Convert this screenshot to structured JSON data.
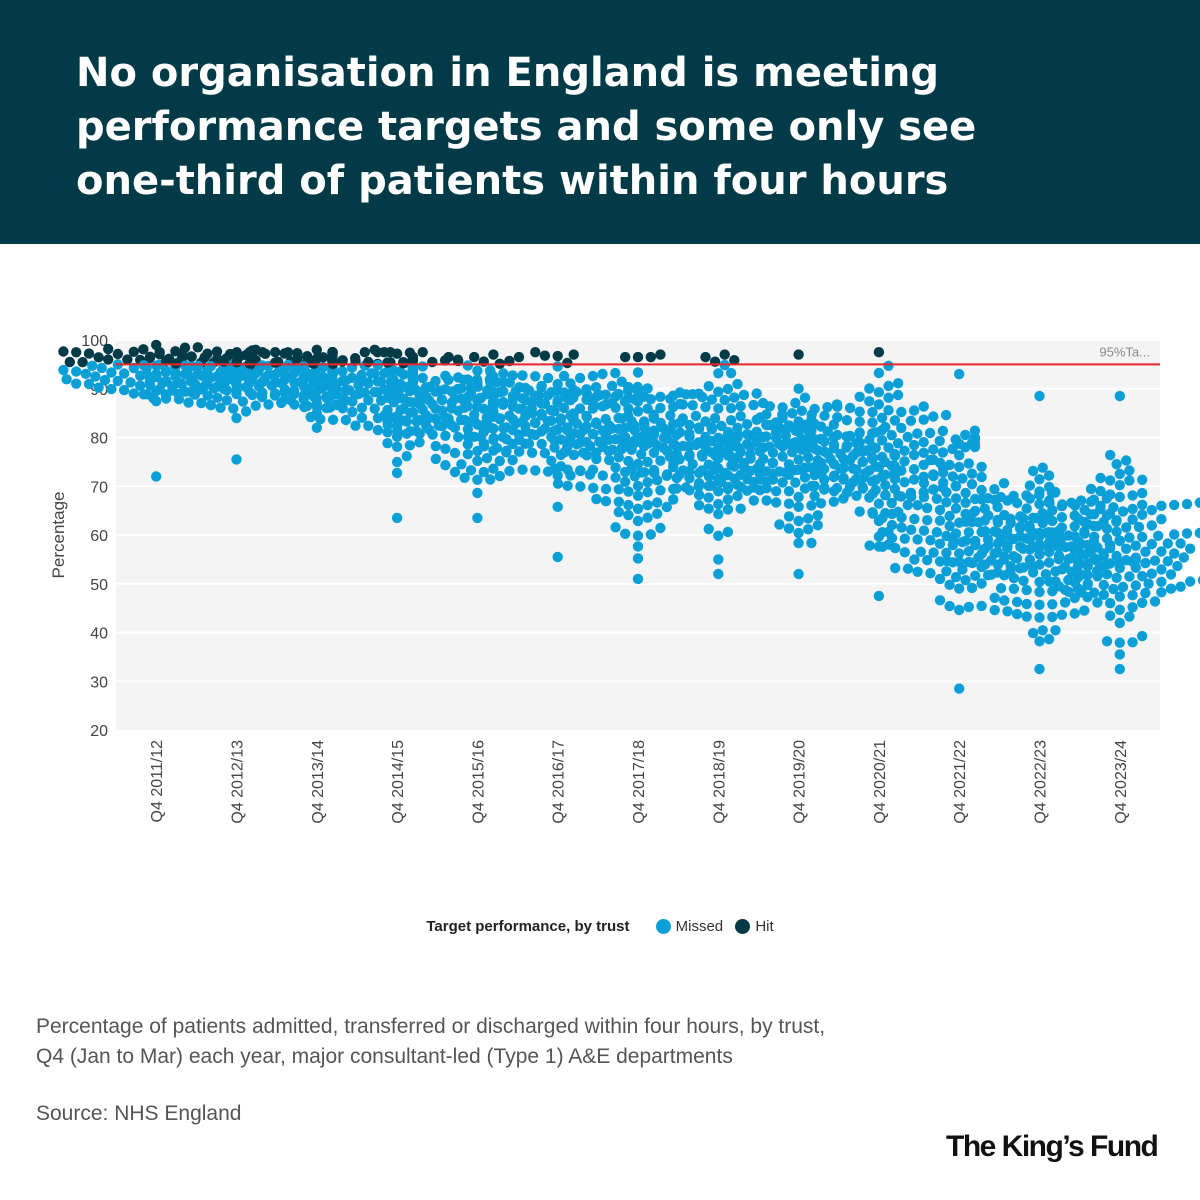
{
  "header": {
    "title_lines": [
      "No organisation in England is meeting",
      "performance targets and some only see",
      "one-third of patients within four hours"
    ]
  },
  "chart_data": {
    "type": "scatter",
    "subtype": "beeswarm",
    "ylabel": "Percentage",
    "ylim": [
      20,
      100
    ],
    "yticks": [
      20,
      30,
      40,
      50,
      60,
      70,
      80,
      90,
      100
    ],
    "grid": true,
    "categories": [
      "Q4 2011/12",
      "Q4 2012/13",
      "Q4 2013/14",
      "Q4 2014/15",
      "Q4 2015/16",
      "Q4 2016/17",
      "Q4 2017/18",
      "Q4 2018/19",
      "Q4 2019/20",
      "Q4 2020/21",
      "Q4 2021/22",
      "Q4 2022/23",
      "Q4 2023/24"
    ],
    "target_line": {
      "value": 95,
      "label": "95%Ta...",
      "color": "#e8262c"
    },
    "series": [
      {
        "name": "Missed",
        "color": "#0b9fd8"
      },
      {
        "name": "Hit",
        "color": "#023a47"
      }
    ],
    "distribution": [
      {
        "category": "Q4 2011/12",
        "n": 140,
        "median": 94,
        "spread": 2.5,
        "min": 72,
        "max": 99
      },
      {
        "category": "Q4 2012/13",
        "n": 145,
        "median": 92,
        "spread": 3.5,
        "min": 75.5,
        "max": 98
      },
      {
        "category": "Q4 2013/14",
        "n": 145,
        "median": 93,
        "spread": 3,
        "min": 82,
        "max": 98
      },
      {
        "category": "Q4 2014/15",
        "n": 145,
        "median": 88,
        "spread": 4.5,
        "min": 63.5,
        "max": 98
      },
      {
        "category": "Q4 2015/16",
        "n": 145,
        "median": 84,
        "spread": 6,
        "min": 63.5,
        "max": 97
      },
      {
        "category": "Q4 2016/17",
        "n": 145,
        "median": 83,
        "spread": 6.5,
        "min": 55.5,
        "max": 97.5
      },
      {
        "category": "Q4 2017/18",
        "n": 145,
        "median": 78,
        "spread": 8,
        "min": 51,
        "max": 97
      },
      {
        "category": "Q4 2018/19",
        "n": 145,
        "median": 78,
        "spread": 7.5,
        "min": 52,
        "max": 97
      },
      {
        "category": "Q4 2019/20",
        "n": 145,
        "median": 74,
        "spread": 7.5,
        "min": 52,
        "max": 97
      },
      {
        "category": "Q4 2020/21",
        "n": 145,
        "median": 78,
        "spread": 7,
        "min": 47.5,
        "max": 97.5
      },
      {
        "category": "Q4 2021/22",
        "n": 145,
        "median": 60,
        "spread": 8,
        "min": 28.5,
        "max": 93
      },
      {
        "category": "Q4 2022/23",
        "n": 145,
        "median": 56,
        "spread": 8,
        "min": 32.5,
        "max": 88.5
      },
      {
        "category": "Q4 2023/24",
        "n": 145,
        "median": 57,
        "spread": 8.5,
        "min": 32.5,
        "max": 88.5
      }
    ]
  },
  "legend": {
    "title": "Target performance, by trust",
    "items": [
      {
        "label": "Missed",
        "color": "#0b9fd8"
      },
      {
        "label": "Hit",
        "color": "#023a47"
      }
    ]
  },
  "caption_lines": [
    "Percentage of patients admitted, transferred or discharged within four hours, by trust,",
    "Q4 (Jan to Mar) each year, major consultant-led (Type 1) A&E departments"
  ],
  "source": "Source: NHS England",
  "logo": "The King’s Fund"
}
